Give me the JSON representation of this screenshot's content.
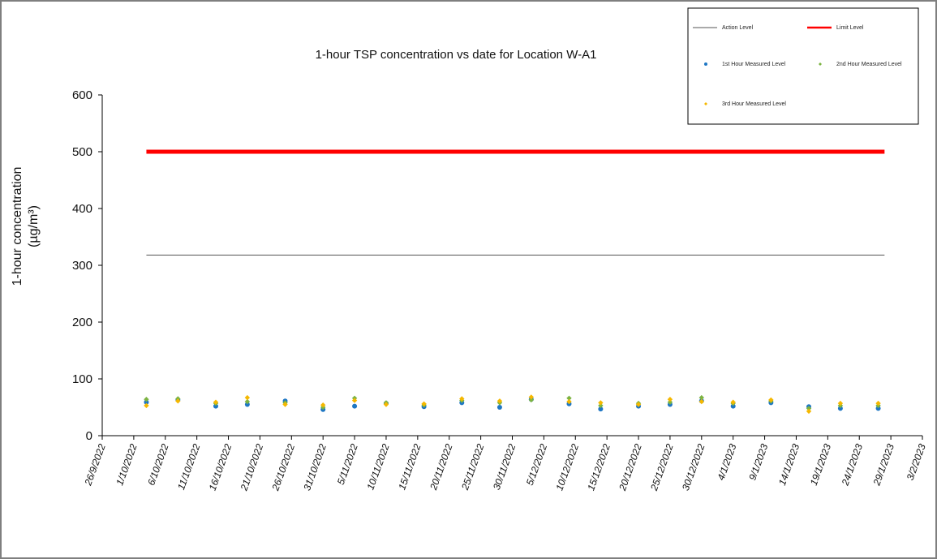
{
  "chart_data": {
    "type": "scatter",
    "title": "1-hour TSP concentration vs date for Location W-A1",
    "ylabel_line1": "1-hour concentration",
    "ylabel_line2": "(µg/m³)",
    "ylim": [
      0,
      600
    ],
    "yticks": [
      "0",
      "100",
      "200",
      "300",
      "400",
      "500",
      "600"
    ],
    "xlim": [
      "2022-09-26",
      "2023-02-03"
    ],
    "xticks": [
      "26/9/2022",
      "1/10/2022",
      "6/10/2022",
      "11/10/2022",
      "16/10/2022",
      "21/10/2022",
      "26/10/2022",
      "31/10/2022",
      "5/11/2022",
      "10/11/2022",
      "15/11/2022",
      "20/11/2022",
      "25/11/2022",
      "30/11/2022",
      "5/12/2022",
      "10/12/2022",
      "15/12/2022",
      "20/12/2022",
      "25/12/2022",
      "30/12/2022",
      "4/1/2023",
      "9/1/2023",
      "14/1/2023",
      "19/1/2023",
      "24/1/2023",
      "29/1/2023",
      "3/2/2023"
    ],
    "legend_position": "top-right",
    "lines": [
      {
        "name": "Action Level",
        "value": 318,
        "x_start": "2022-10-03",
        "x_end": "2023-01-28",
        "color": "#555555"
      },
      {
        "name": "Limit Level",
        "value": 500,
        "x_start": "2022-10-03",
        "x_end": "2023-01-28",
        "color": "#ff0000"
      }
    ],
    "dates": [
      "2022-10-03",
      "2022-10-08",
      "2022-10-14",
      "2022-10-19",
      "2022-10-25",
      "2022-10-31",
      "2022-11-05",
      "2022-11-10",
      "2022-11-16",
      "2022-11-22",
      "2022-11-28",
      "2022-12-03",
      "2022-12-09",
      "2022-12-14",
      "2022-12-20",
      "2022-12-25",
      "2022-12-30",
      "2023-01-04",
      "2023-01-10",
      "2023-01-16",
      "2023-01-21",
      "2023-01-27"
    ],
    "series": [
      {
        "name": "1st Hour Measured Level",
        "color": "#1f77c4",
        "values": [
          59,
          63,
          52,
          55,
          61,
          46,
          52,
          57,
          51,
          58,
          50,
          64,
          56,
          47,
          52,
          55,
          61,
          52,
          58,
          51,
          48,
          48
        ]
      },
      {
        "name": "2nd Hour Measured Level",
        "color": "#7cb342",
        "values": [
          64,
          65,
          57,
          60,
          58,
          50,
          66,
          58,
          54,
          62,
          58,
          63,
          66,
          53,
          57,
          59,
          67,
          57,
          61,
          48,
          53,
          53
        ]
      },
      {
        "name": "3rd Hour Measured Level",
        "color": "#f5b800",
        "values": [
          53,
          61,
          59,
          67,
          55,
          54,
          62,
          55,
          56,
          65,
          61,
          68,
          60,
          58,
          55,
          64,
          60,
          59,
          63,
          43,
          57,
          57
        ]
      }
    ]
  }
}
